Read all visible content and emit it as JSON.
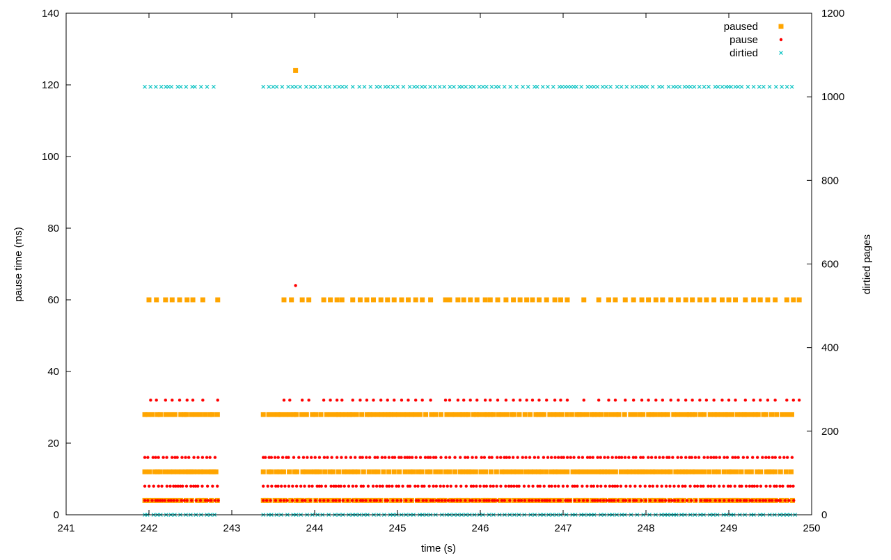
{
  "chart_data": {
    "type": "scatter",
    "title": "",
    "xlabel": "time (s)",
    "ylabel": "pause time (ms)",
    "y2label": "dirtied pages",
    "xlim": [
      241,
      250
    ],
    "ylim": [
      0,
      140
    ],
    "y2lim": [
      0,
      1200
    ],
    "x_ticks": [
      "241",
      "242",
      "243",
      "244",
      "245",
      "246",
      "247",
      "248",
      "249",
      "250"
    ],
    "y_ticks": [
      "0",
      "20",
      "40",
      "60",
      "80",
      "100",
      "120",
      "140"
    ],
    "y2_ticks": [
      "0",
      "200",
      "400",
      "600",
      "800",
      "1000",
      "1200"
    ],
    "legend_position": "top-right",
    "grid": false,
    "segments": [
      [
        241.95,
        242.85
      ],
      [
        243.38,
        249.8
      ]
    ],
    "series": [
      {
        "name": "paused",
        "color": "#ffa500",
        "marker": "square",
        "axis": "left",
        "levels": [
          4,
          12,
          28
        ],
        "sparse_level": 60,
        "sparse_x": [
          242.0,
          242.09,
          242.2,
          242.28,
          242.37,
          242.46,
          242.53,
          242.65,
          242.83,
          243.63,
          243.72,
          243.85,
          243.93,
          244.11,
          244.19,
          244.27,
          244.33,
          244.46,
          244.55,
          244.63,
          244.71,
          244.8,
          244.88,
          244.96,
          245.05,
          245.13,
          245.22,
          245.3,
          245.4,
          245.58,
          245.63,
          245.73,
          245.8,
          245.88,
          245.96,
          246.06,
          246.12,
          246.21,
          246.31,
          246.4,
          246.48,
          246.56,
          246.63,
          246.71,
          246.8,
          246.9,
          246.97,
          247.05,
          247.25,
          247.43,
          247.55,
          247.63,
          247.75,
          247.85,
          247.95,
          248.03,
          248.12,
          248.2,
          248.3,
          248.39,
          248.48,
          248.56,
          248.65,
          248.73,
          248.82,
          248.92,
          249.0,
          249.08,
          249.2,
          249.3,
          249.38,
          249.47,
          249.56,
          249.7,
          249.78,
          249.85
        ],
        "outliers": [
          [
            243.77,
            124
          ]
        ]
      },
      {
        "name": "pause",
        "color": "#ff0000",
        "marker": "dot",
        "axis": "left",
        "levels": [
          4,
          8,
          16
        ],
        "sparse_level": 32,
        "sparse_x": [
          242.02,
          242.09,
          242.2,
          242.28,
          242.37,
          242.46,
          242.53,
          242.65,
          242.83,
          243.63,
          243.7,
          243.85,
          243.93,
          244.11,
          244.19,
          244.27,
          244.33,
          244.46,
          244.55,
          244.63,
          244.71,
          244.8,
          244.88,
          244.96,
          245.05,
          245.13,
          245.22,
          245.3,
          245.4,
          245.58,
          245.63,
          245.73,
          245.8,
          245.88,
          245.96,
          246.06,
          246.12,
          246.21,
          246.31,
          246.4,
          246.48,
          246.56,
          246.63,
          246.71,
          246.8,
          246.9,
          246.97,
          247.05,
          247.25,
          247.43,
          247.55,
          247.63,
          247.75,
          247.85,
          247.95,
          248.03,
          248.12,
          248.2,
          248.3,
          248.39,
          248.48,
          248.56,
          248.65,
          248.73,
          248.82,
          248.92,
          249.0,
          249.08,
          249.2,
          249.3,
          249.38,
          249.47,
          249.56,
          249.7,
          249.78,
          249.85
        ],
        "outliers": [
          [
            243.77,
            64
          ]
        ]
      },
      {
        "name": "dirtied",
        "color": "#00c0c0",
        "marker": "cross",
        "axis": "right",
        "levels": [
          0,
          1024
        ],
        "outliers": []
      }
    ]
  }
}
